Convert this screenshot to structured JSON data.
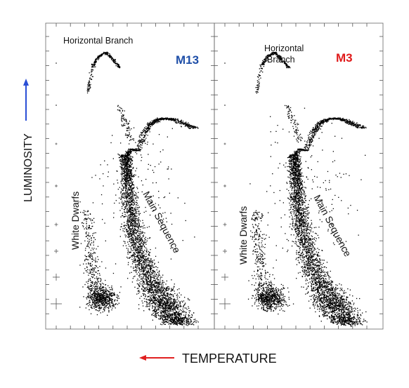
{
  "figure": {
    "y_axis_label": "LUMINOSITY",
    "x_axis_label": "TEMPERATURE",
    "y_arrow_color": "#2a4fd6",
    "x_arrow_color": "#e02020",
    "y_direction": "up",
    "x_direction": "left"
  },
  "chart_data": [
    {
      "type": "scatter",
      "title": "M13",
      "title_color": "#1f4fa8",
      "xlabel": "TEMPERATURE",
      "ylabel": "LUMINOSITY",
      "annotations": [
        {
          "text": "Horizontal Branch"
        },
        {
          "text": "White Dwarfs"
        },
        {
          "text": "Main Sequence"
        }
      ]
    },
    {
      "type": "scatter",
      "title": "M3",
      "title_color": "#e01b1b",
      "xlabel": "TEMPERATURE",
      "ylabel": "LUMINOSITY",
      "annotations": [
        {
          "text": "Horizontal"
        },
        {
          "text": "Branch"
        },
        {
          "text": "White Dwarfs"
        },
        {
          "text": "Main Sequence"
        }
      ]
    }
  ]
}
